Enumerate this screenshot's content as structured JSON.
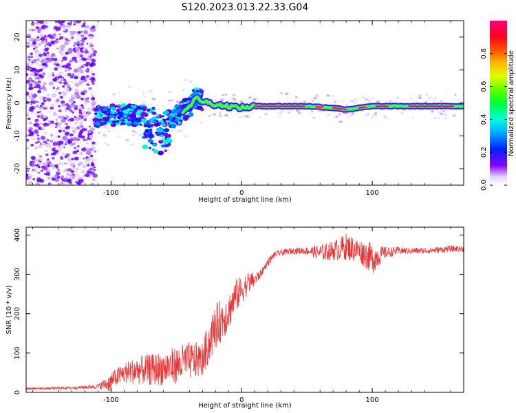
{
  "figure": {
    "title": "S120.2023.013.22.33.G04"
  },
  "chart_data": [
    {
      "type": "heatmap",
      "panel": "top",
      "xlabel": "Height of straight line (km)",
      "ylabel": "Frequency (Hz)",
      "xlim": [
        -165,
        170
      ],
      "ylim": [
        -25,
        25
      ],
      "x_ticks": [
        -100,
        0,
        100
      ],
      "y_ticks": [
        -20,
        -10,
        0,
        10,
        20
      ],
      "grid": false,
      "colormap": "gist_rainbow (white-violet-blue-cyan-green-yellow-orange-red-magenta)",
      "colorbar": {
        "label": "Normalized spectral amplitude",
        "ticks": [
          0.0,
          0.2,
          0.4,
          0.6,
          0.8
        ],
        "range": [
          0,
          1
        ]
      },
      "ridge_frequency": {
        "x": [
          -110,
          -90,
          -70,
          -60,
          -50,
          -40,
          -35,
          -30,
          -20,
          -10,
          0,
          10,
          50,
          70,
          80,
          90,
          100,
          130,
          170
        ],
        "y": [
          -4,
          -3.5,
          -4,
          -6,
          -4,
          -1,
          1.5,
          0.5,
          -0.5,
          -1,
          -1.5,
          -1,
          -1,
          -1.5,
          -2,
          -1.5,
          -1,
          -1,
          -1
        ]
      }
    },
    {
      "type": "line",
      "panel": "bottom",
      "xlabel": "Height of straight line (km)",
      "ylabel": "SNR (10 * v/v)",
      "xlim": [
        -165,
        170
      ],
      "ylim": [
        0,
        420
      ],
      "x_ticks": [
        -100,
        0,
        100
      ],
      "y_ticks": [
        0,
        100,
        200,
        300,
        400
      ],
      "grid": false,
      "series": [
        {
          "color": "#ee3333",
          "x": [
            -165,
            -150,
            -125,
            -110,
            -100,
            -90,
            -80,
            -70,
            -60,
            -50,
            -40,
            -30,
            -25,
            -20,
            -15,
            -10,
            -5,
            0,
            5,
            10,
            15,
            20,
            25,
            30,
            40,
            50,
            60,
            70,
            80,
            90,
            100,
            110,
            120,
            130,
            140,
            150,
            160,
            170
          ],
          "y": [
            10,
            10,
            12,
            15,
            25,
            40,
            45,
            45,
            48,
            55,
            65,
            70,
            110,
            150,
            170,
            190,
            230,
            250,
            270,
            280,
            300,
            330,
            350,
            355,
            360,
            360,
            355,
            360,
            370,
            360,
            340,
            355,
            360,
            360,
            360,
            362,
            365,
            365
          ],
          "noise": [
            3,
            3,
            4,
            6,
            25,
            35,
            45,
            50,
            55,
            60,
            60,
            55,
            70,
            70,
            70,
            60,
            55,
            45,
            35,
            25,
            12,
            10,
            8,
            8,
            8,
            10,
            20,
            25,
            35,
            30,
            40,
            15,
            10,
            8,
            8,
            8,
            8,
            8
          ]
        }
      ]
    }
  ]
}
